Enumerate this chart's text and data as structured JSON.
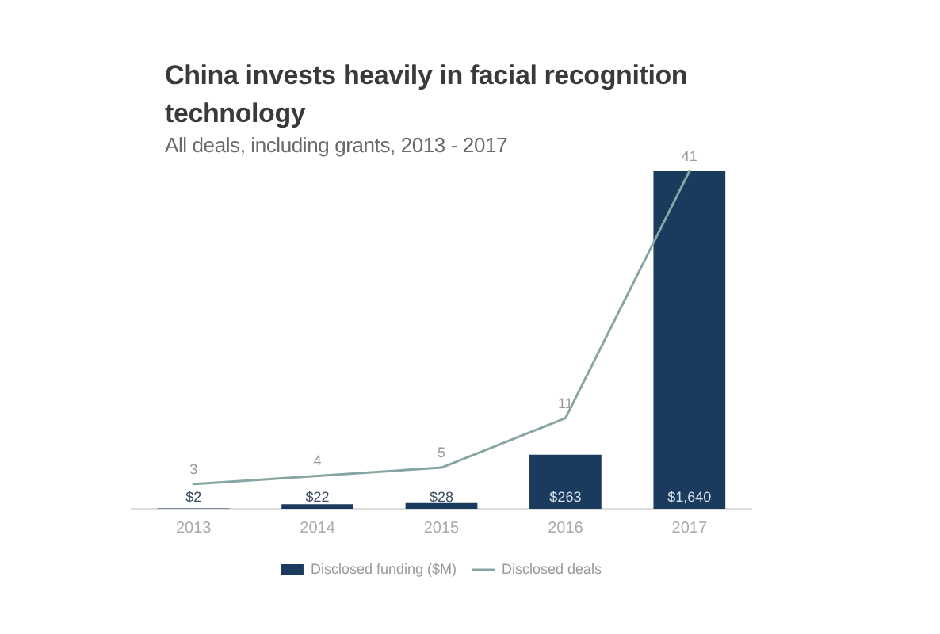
{
  "chart_data": {
    "type": "bar",
    "title": "China invests heavily in facial recognition technology",
    "subtitle": "All deals, including grants, 2013 - 2017",
    "categories": [
      "2013",
      "2014",
      "2015",
      "2016",
      "2017"
    ],
    "series": [
      {
        "name": "Disclosed funding ($M)",
        "color": "#1a3a5e",
        "values": [
          2,
          22,
          28,
          263,
          1640
        ],
        "value_labels": [
          "$2",
          "$22",
          "$28",
          "$263",
          "$1,640"
        ]
      },
      {
        "name": "Disclosed deals",
        "type": "line",
        "axis": "y2",
        "color": "#86a6a3",
        "values": [
          3,
          4,
          5,
          11,
          41
        ],
        "value_labels": [
          "3",
          "4",
          "5",
          "11",
          "41"
        ]
      }
    ],
    "legend": "bottom",
    "tick_labels": "x"
  }
}
